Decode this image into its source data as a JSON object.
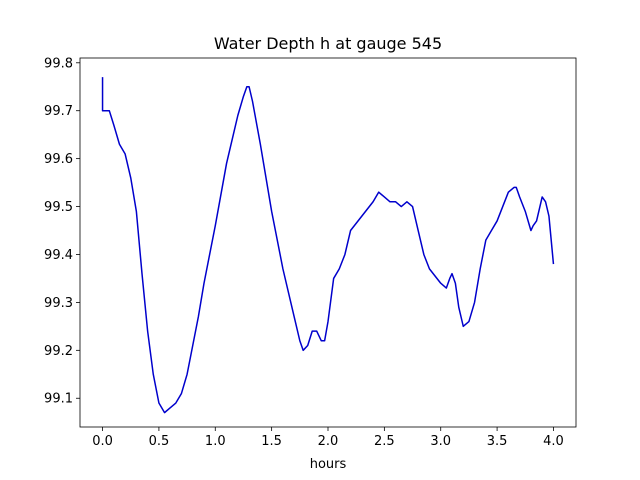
{
  "chart_data": {
    "type": "line",
    "title": "Water Depth h at gauge 545",
    "xlabel": "hours",
    "ylabel": "",
    "xlim": [
      -0.2,
      4.2
    ],
    "ylim": [
      99.04,
      99.81
    ],
    "xticks": [
      0.0,
      0.5,
      1.0,
      1.5,
      2.0,
      2.5,
      3.0,
      3.5,
      4.0
    ],
    "xtick_labels": [
      "0.0",
      "0.5",
      "1.0",
      "1.5",
      "2.0",
      "2.5",
      "3.0",
      "3.5",
      "4.0"
    ],
    "yticks": [
      99.1,
      99.2,
      99.3,
      99.4,
      99.5,
      99.6,
      99.7,
      99.8
    ],
    "ytick_labels": [
      "99.1",
      "99.2",
      "99.3",
      "99.4",
      "99.5",
      "99.6",
      "99.7",
      "99.8"
    ],
    "grid": false,
    "series": [
      {
        "color": "#0000cc",
        "x": [
          0.0,
          0.0,
          0.03,
          0.06,
          0.1,
          0.15,
          0.2,
          0.25,
          0.3,
          0.35,
          0.4,
          0.45,
          0.5,
          0.55,
          0.6,
          0.65,
          0.7,
          0.75,
          0.8,
          0.85,
          0.9,
          1.0,
          1.1,
          1.2,
          1.25,
          1.28,
          1.3,
          1.33,
          1.4,
          1.5,
          1.6,
          1.7,
          1.75,
          1.78,
          1.82,
          1.86,
          1.9,
          1.94,
          1.97,
          2.0,
          2.05,
          2.1,
          2.15,
          2.2,
          2.3,
          2.4,
          2.45,
          2.5,
          2.55,
          2.6,
          2.65,
          2.7,
          2.75,
          2.8,
          2.85,
          2.9,
          3.0,
          3.05,
          3.08,
          3.1,
          3.13,
          3.16,
          3.2,
          3.25,
          3.3,
          3.35,
          3.4,
          3.45,
          3.5,
          3.55,
          3.6,
          3.65,
          3.67,
          3.7,
          3.75,
          3.8,
          3.82,
          3.85,
          3.88,
          3.9,
          3.93,
          3.96,
          4.0
        ],
        "values": [
          99.77,
          99.7,
          99.7,
          99.7,
          99.67,
          99.63,
          99.61,
          99.56,
          99.49,
          99.36,
          99.24,
          99.15,
          99.09,
          99.07,
          99.08,
          99.09,
          99.11,
          99.15,
          99.21,
          99.27,
          99.34,
          99.46,
          99.59,
          99.69,
          99.73,
          99.75,
          99.75,
          99.72,
          99.63,
          99.49,
          99.37,
          99.27,
          99.22,
          99.2,
          99.21,
          99.24,
          99.24,
          99.22,
          99.22,
          99.26,
          99.35,
          99.37,
          99.4,
          99.45,
          99.48,
          99.51,
          99.53,
          99.52,
          99.51,
          99.51,
          99.5,
          99.51,
          99.5,
          99.45,
          99.4,
          99.37,
          99.34,
          99.33,
          99.35,
          99.36,
          99.34,
          99.29,
          99.25,
          99.26,
          99.3,
          99.37,
          99.43,
          99.45,
          99.47,
          99.5,
          99.53,
          99.54,
          99.54,
          99.52,
          99.49,
          99.45,
          99.46,
          99.47,
          99.5,
          99.52,
          99.51,
          99.48,
          99.38
        ]
      }
    ]
  }
}
